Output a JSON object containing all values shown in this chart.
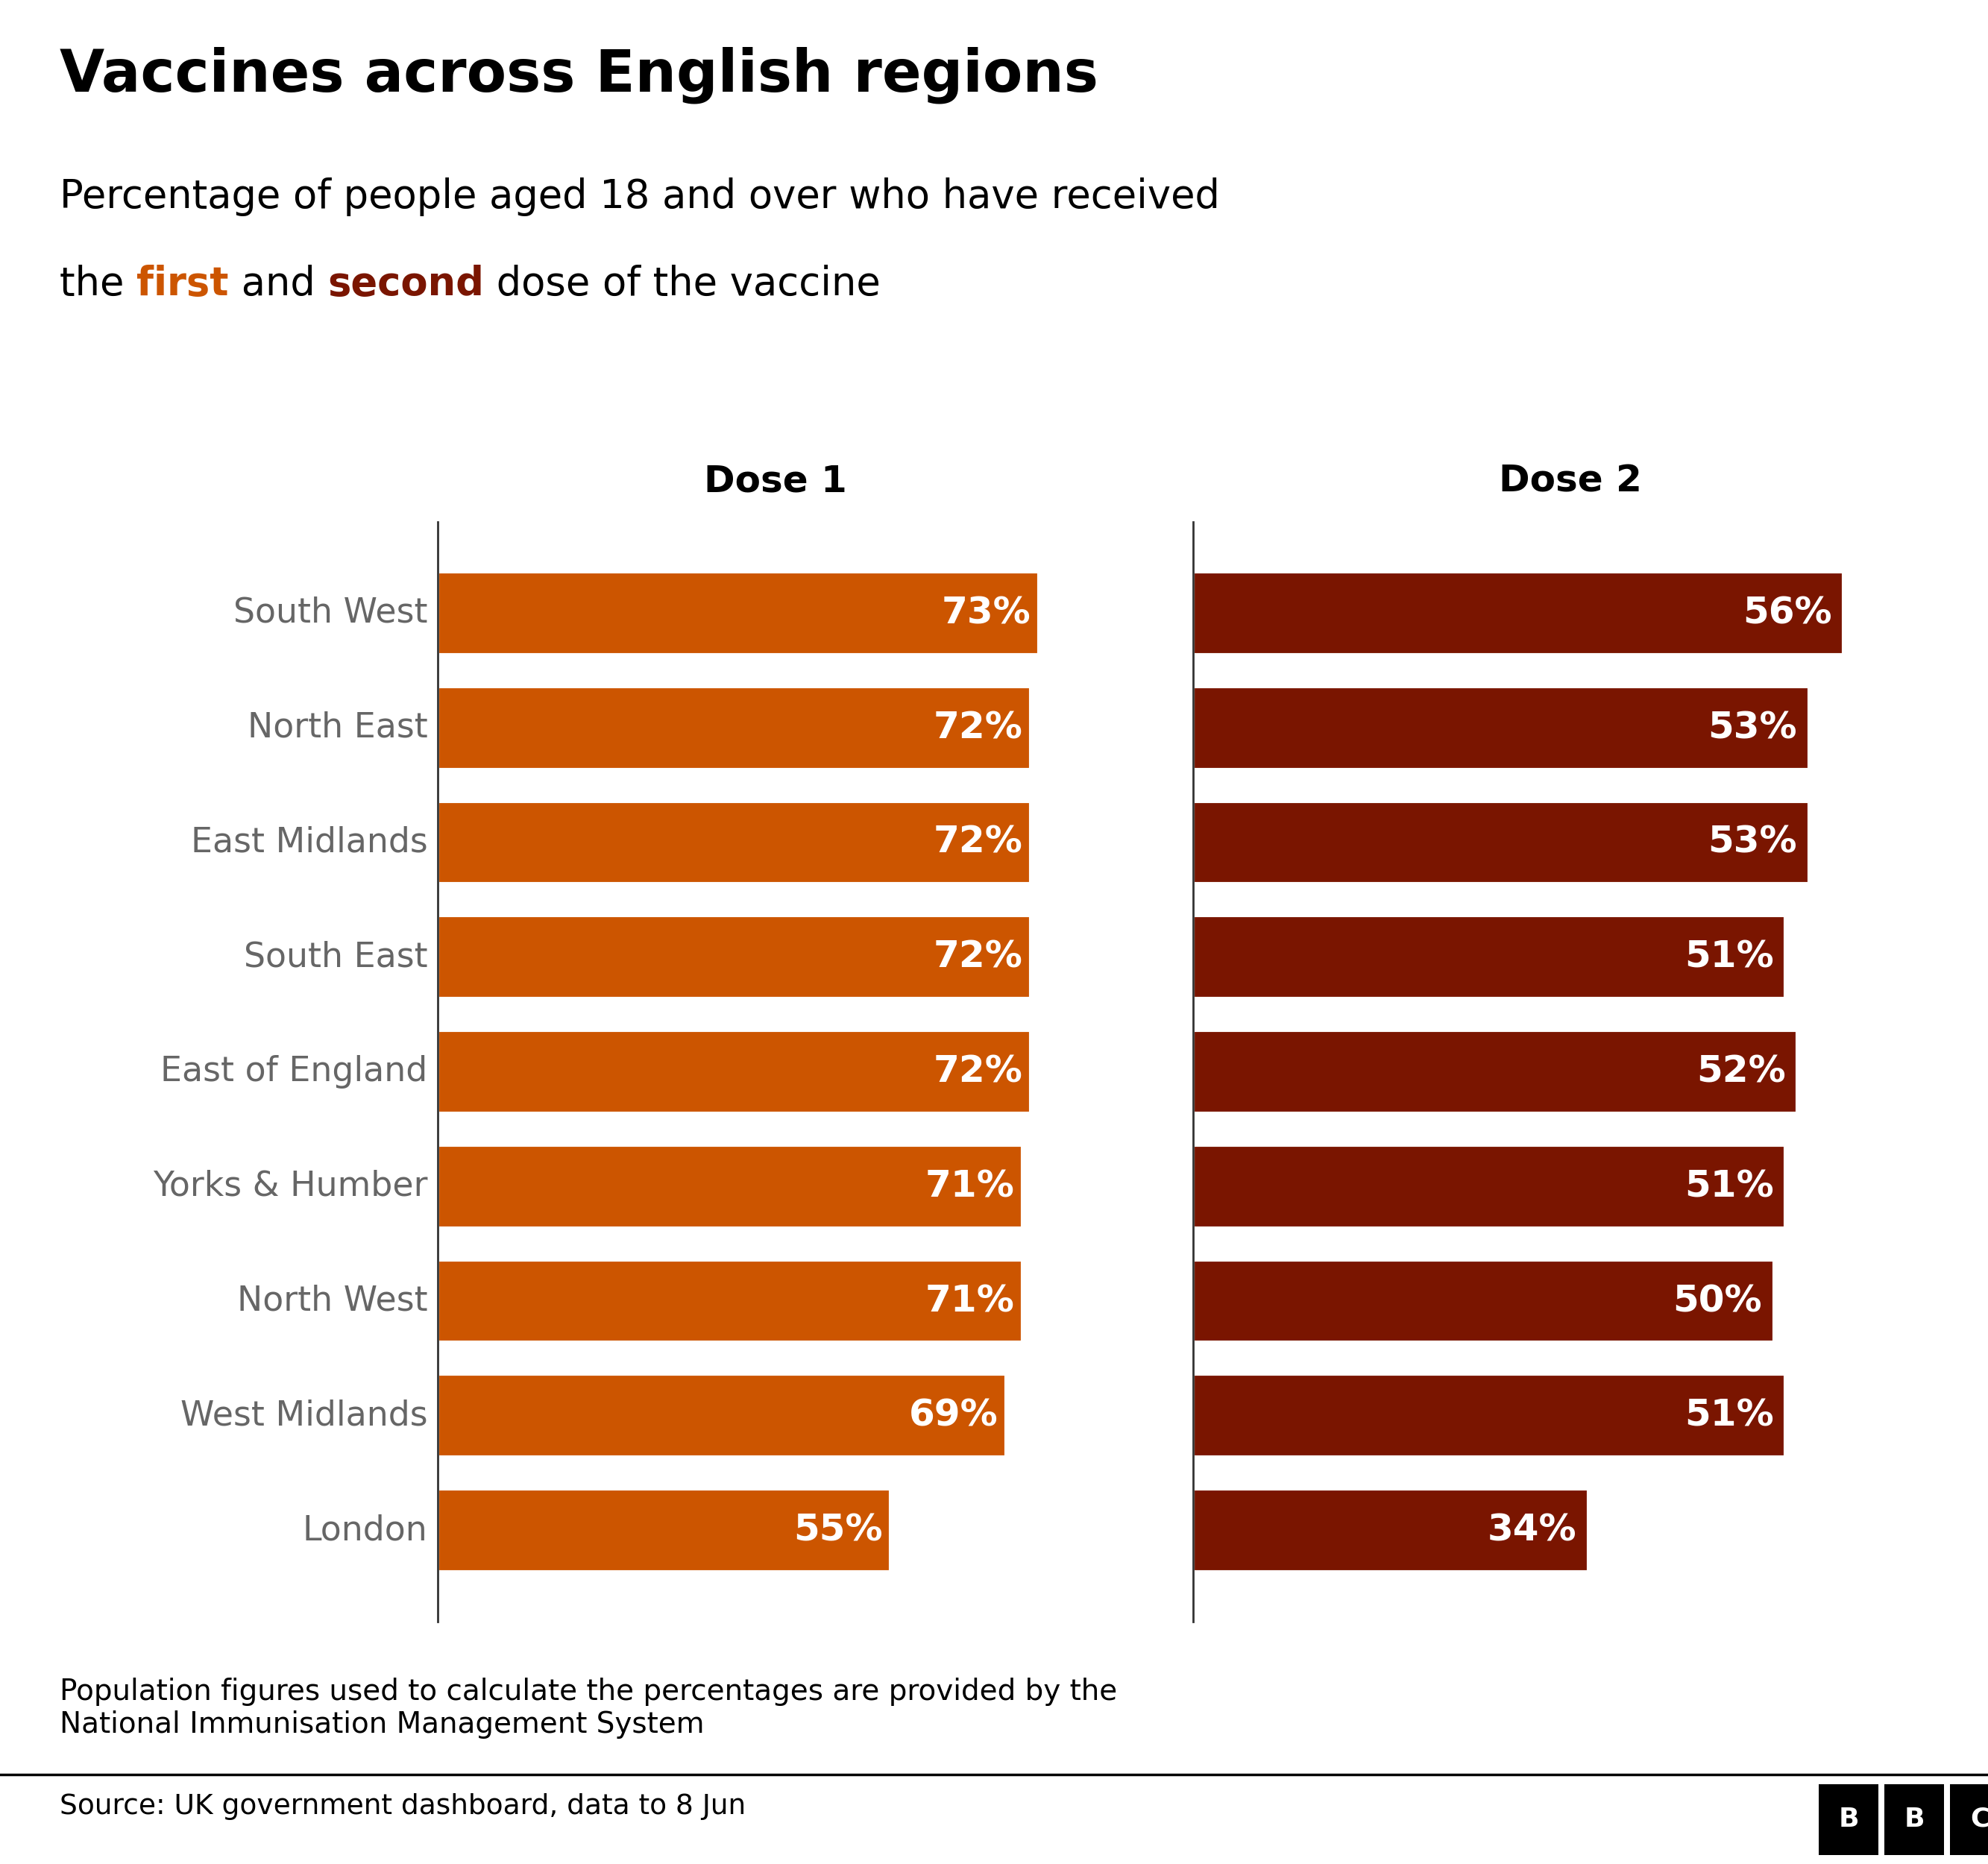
{
  "title": "Vaccines across English regions",
  "subtitle_line1": "Percentage of people aged 18 and over who have received",
  "subtitle_line2_pre": "the ",
  "subtitle_line2_first": "first",
  "subtitle_line2_mid": " and ",
  "subtitle_line2_second": "second",
  "subtitle_line2_post": " dose of the vaccine",
  "regions": [
    "South West",
    "North East",
    "East Midlands",
    "South East",
    "East of England",
    "Yorks & Humber",
    "North West",
    "West Midlands",
    "London"
  ],
  "dose1_values": [
    73,
    72,
    72,
    72,
    72,
    71,
    71,
    69,
    55
  ],
  "dose2_values": [
    56,
    53,
    53,
    51,
    52,
    51,
    50,
    51,
    34
  ],
  "dose1_color": "#cc5500",
  "dose2_color": "#7a1500",
  "dose1_label": "Dose 1",
  "dose2_label": "Dose 2",
  "footnote": "Population figures used to calculate the percentages are provided by the\nNational Immunisation Management System",
  "source": "Source: UK government dashboard, data to 8 Jun",
  "background_color": "#ffffff",
  "bar_text_color": "#ffffff",
  "region_text_color": "#666666",
  "title_fontsize": 56,
  "subtitle_fontsize": 38,
  "label_fontsize": 36,
  "bar_value_fontsize": 36,
  "region_fontsize": 33,
  "footnote_fontsize": 28,
  "source_fontsize": 27
}
